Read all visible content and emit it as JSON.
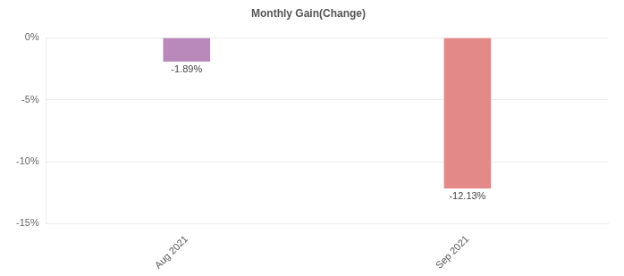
{
  "chart_data": {
    "type": "bar",
    "title": "Monthly Gain(Change)",
    "categories": [
      "Aug 2021",
      "Sep 2021"
    ],
    "values": [
      -1.89,
      -12.13
    ],
    "value_labels": [
      "-1.89%",
      "-12.13%"
    ],
    "data_labels": true,
    "colors": [
      "#b989bb",
      "#e38a88"
    ],
    "ylim": [
      -15,
      0
    ],
    "yticks": [
      {
        "value": -15,
        "label": "-15%"
      },
      {
        "value": -10,
        "label": "-10%"
      },
      {
        "value": -5,
        "label": "-5%"
      },
      {
        "value": 0,
        "label": "0%"
      }
    ],
    "grid": true
  }
}
